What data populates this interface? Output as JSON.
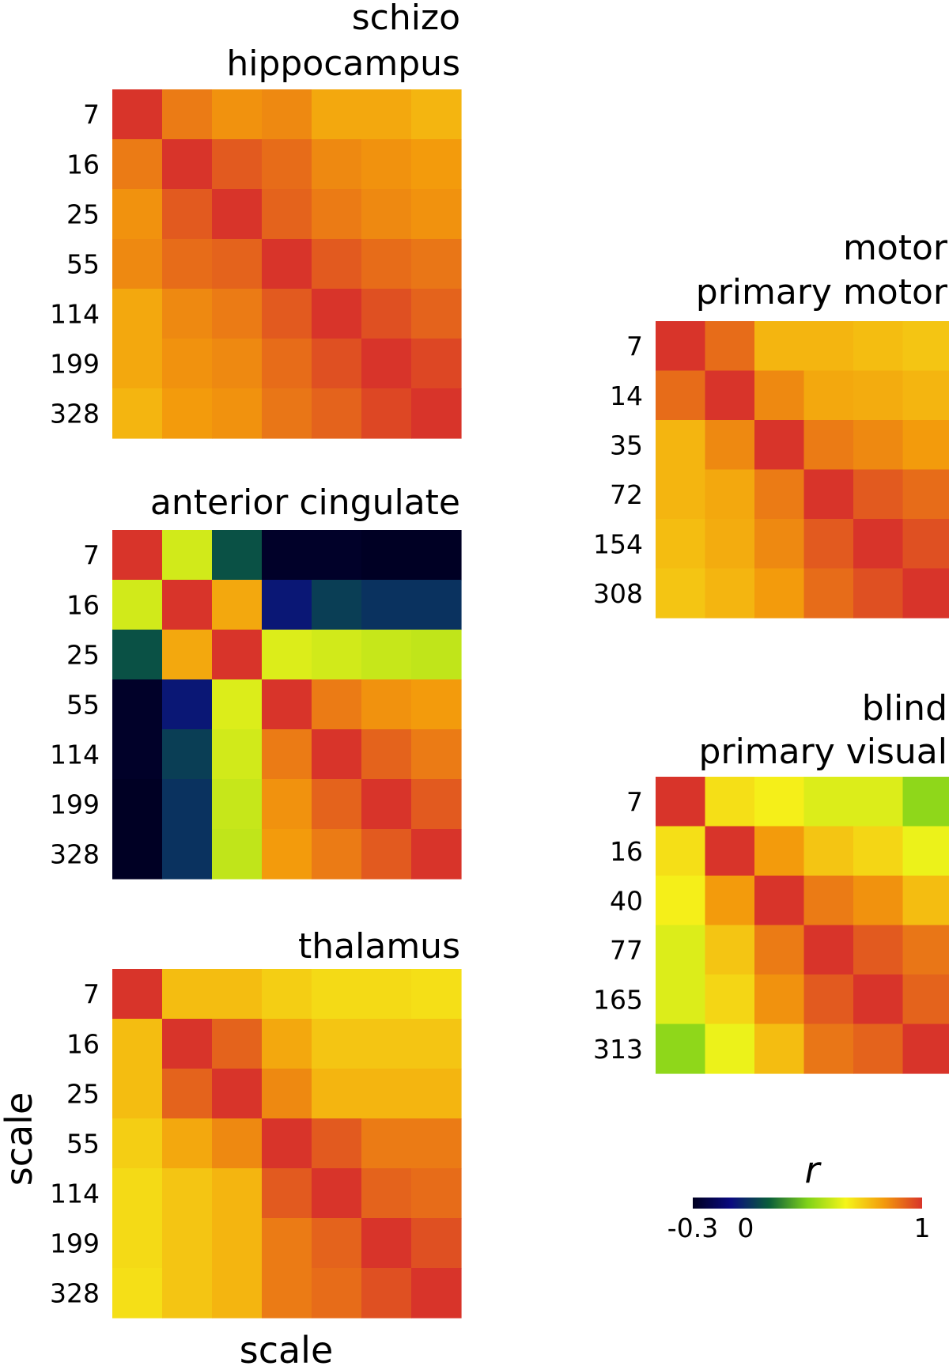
{
  "chart_data": [
    {
      "type": "heatmap",
      "group": "schizo",
      "title": "hippocampus",
      "labels": [
        "7",
        "16",
        "25",
        "55",
        "114",
        "199",
        "328"
      ],
      "values": [
        [
          1.0,
          0.85,
          0.8,
          0.82,
          0.75,
          0.75,
          0.72
        ],
        [
          0.85,
          1.0,
          0.92,
          0.88,
          0.82,
          0.8,
          0.78
        ],
        [
          0.8,
          0.92,
          1.0,
          0.9,
          0.85,
          0.82,
          0.8
        ],
        [
          0.82,
          0.88,
          0.9,
          1.0,
          0.92,
          0.88,
          0.86
        ],
        [
          0.75,
          0.82,
          0.85,
          0.92,
          1.0,
          0.94,
          0.9
        ],
        [
          0.75,
          0.8,
          0.82,
          0.88,
          0.94,
          1.0,
          0.96
        ],
        [
          0.72,
          0.78,
          0.8,
          0.86,
          0.9,
          0.96,
          1.0
        ]
      ]
    },
    {
      "type": "heatmap",
      "title": "anterior cingulate",
      "labels": [
        "7",
        "16",
        "25",
        "55",
        "114",
        "199",
        "328"
      ],
      "values": [
        [
          1.0,
          0.5,
          0.1,
          -0.28,
          -0.28,
          -0.29,
          -0.29
        ],
        [
          0.5,
          1.0,
          0.75,
          -0.05,
          0.05,
          0.02,
          0.02
        ],
        [
          0.1,
          0.75,
          1.0,
          0.52,
          0.5,
          0.48,
          0.47
        ],
        [
          -0.28,
          -0.05,
          0.52,
          1.0,
          0.85,
          0.8,
          0.78
        ],
        [
          -0.28,
          0.05,
          0.5,
          0.85,
          1.0,
          0.9,
          0.85
        ],
        [
          -0.29,
          0.02,
          0.48,
          0.8,
          0.9,
          1.0,
          0.92
        ],
        [
          -0.29,
          0.02,
          0.47,
          0.78,
          0.85,
          0.92,
          1.0
        ]
      ]
    },
    {
      "type": "heatmap",
      "title": "thalamus",
      "labels": [
        "7",
        "16",
        "25",
        "55",
        "114",
        "199",
        "328"
      ],
      "values": [
        [
          1.0,
          0.7,
          0.7,
          0.66,
          0.63,
          0.63,
          0.62
        ],
        [
          0.7,
          1.0,
          0.9,
          0.75,
          0.68,
          0.68,
          0.68
        ],
        [
          0.7,
          0.9,
          1.0,
          0.82,
          0.72,
          0.72,
          0.72
        ],
        [
          0.66,
          0.75,
          0.82,
          1.0,
          0.92,
          0.85,
          0.85
        ],
        [
          0.63,
          0.68,
          0.72,
          0.92,
          1.0,
          0.9,
          0.88
        ],
        [
          0.63,
          0.68,
          0.72,
          0.85,
          0.9,
          1.0,
          0.94
        ],
        [
          0.62,
          0.68,
          0.72,
          0.85,
          0.88,
          0.94,
          1.0
        ]
      ]
    },
    {
      "type": "heatmap",
      "group": "motor",
      "title": "primary motor",
      "labels": [
        "7",
        "14",
        "35",
        "72",
        "154",
        "308"
      ],
      "values": [
        [
          1.0,
          0.88,
          0.72,
          0.72,
          0.7,
          0.68
        ],
        [
          0.88,
          1.0,
          0.82,
          0.75,
          0.74,
          0.72
        ],
        [
          0.72,
          0.82,
          1.0,
          0.85,
          0.82,
          0.78
        ],
        [
          0.72,
          0.75,
          0.85,
          1.0,
          0.92,
          0.88
        ],
        [
          0.7,
          0.74,
          0.82,
          0.92,
          1.0,
          0.94
        ],
        [
          0.68,
          0.72,
          0.78,
          0.88,
          0.94,
          1.0
        ]
      ]
    },
    {
      "type": "heatmap",
      "group": "blind",
      "title": "primary visual",
      "labels": [
        "7",
        "16",
        "40",
        "77",
        "165",
        "313"
      ],
      "values": [
        [
          1.0,
          0.62,
          0.58,
          0.52,
          0.52,
          0.38
        ],
        [
          0.62,
          1.0,
          0.78,
          0.68,
          0.64,
          0.55
        ],
        [
          0.58,
          0.78,
          1.0,
          0.85,
          0.8,
          0.7
        ],
        [
          0.52,
          0.68,
          0.85,
          1.0,
          0.92,
          0.86
        ],
        [
          0.52,
          0.64,
          0.8,
          0.92,
          1.0,
          0.9
        ],
        [
          0.38,
          0.55,
          0.7,
          0.86,
          0.9,
          1.0
        ]
      ]
    }
  ],
  "axes": {
    "xlabel": "scale",
    "ylabel": "scale"
  },
  "colorbar": {
    "label": "r",
    "range": [
      -0.3,
      1
    ],
    "ticks": [
      {
        "value": -0.3,
        "label": "-0.3"
      },
      {
        "value": 0,
        "label": "0"
      },
      {
        "value": 1,
        "label": "1"
      }
    ],
    "colors": [
      "#000020",
      "#0a0a80",
      "#0a5e3a",
      "#7fd21a",
      "#f5f51a",
      "#f39a0c",
      "#d8342a"
    ]
  }
}
